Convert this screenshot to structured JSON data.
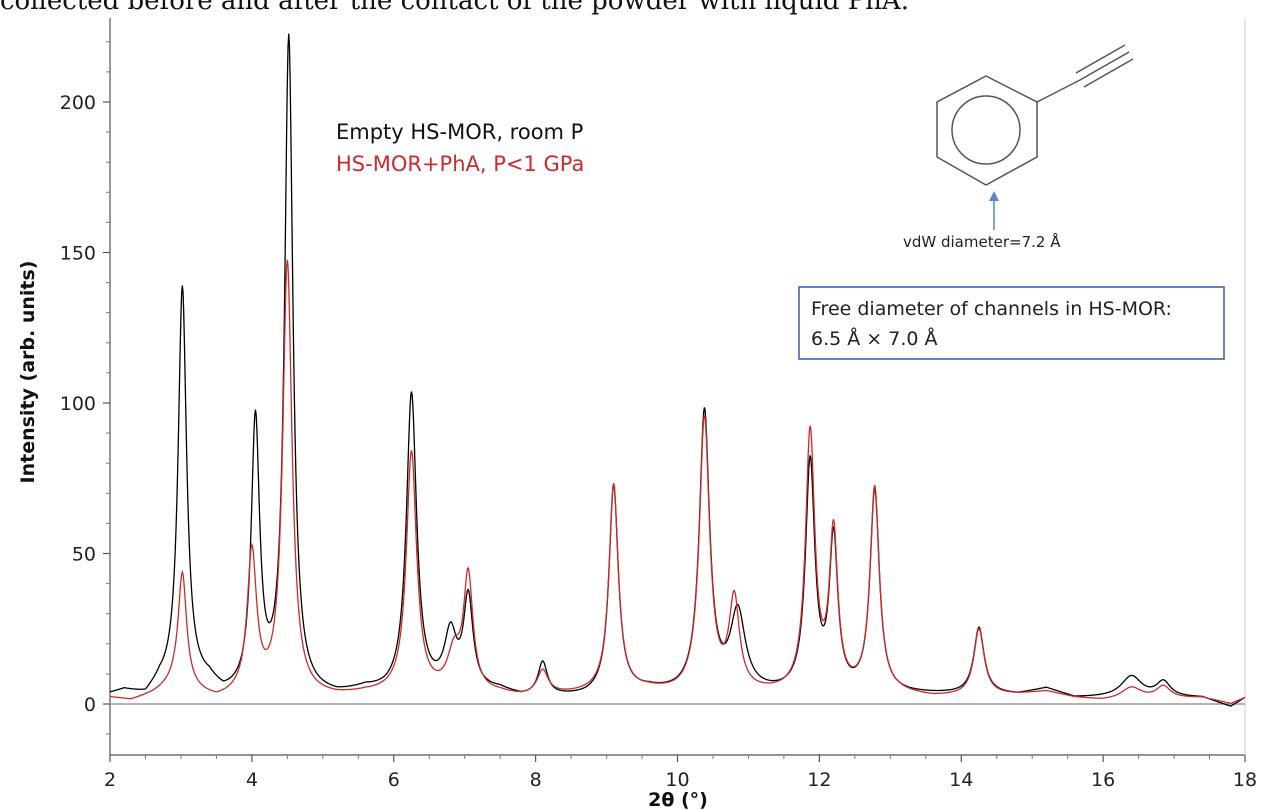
{
  "page_caption": "collected before and after the contact of the powder with liquid PhA.",
  "chart_data": {
    "type": "line",
    "title": "",
    "xlabel": "2θ (°)",
    "ylabel": "Intensity (arb. units)",
    "xlim": [
      2,
      18
    ],
    "ylim": [
      -10,
      222
    ],
    "xticks": [
      2,
      4,
      6,
      8,
      10,
      12,
      14,
      16,
      18
    ],
    "xtick_labels": [
      "2",
      "4",
      "6",
      "8",
      "10",
      "12",
      "14",
      "16",
      "18"
    ],
    "yticks": [
      0,
      50,
      100,
      150,
      200
    ],
    "ytick_labels": [
      "0",
      "50",
      "100",
      "150",
      "200"
    ],
    "grid": false,
    "legend_position": "top-center",
    "baseline_y": 0,
    "series": [
      {
        "name": "Empty HS-MOR, room P",
        "color": "#000000",
        "peaks": [
          {
            "x": 3.02,
            "h": 132,
            "w": 0.09
          },
          {
            "x": 4.05,
            "h": 90,
            "w": 0.09
          },
          {
            "x": 4.52,
            "h": 218,
            "w": 0.09
          },
          {
            "x": 6.25,
            "h": 99,
            "w": 0.11
          },
          {
            "x": 6.8,
            "h": 18,
            "w": 0.13
          },
          {
            "x": 7.05,
            "h": 30,
            "w": 0.1
          },
          {
            "x": 8.1,
            "h": 11,
            "w": 0.1
          },
          {
            "x": 9.1,
            "h": 69,
            "w": 0.1
          },
          {
            "x": 10.38,
            "h": 93,
            "w": 0.11
          },
          {
            "x": 10.85,
            "h": 26,
            "w": 0.16
          },
          {
            "x": 11.87,
            "h": 76,
            "w": 0.1
          },
          {
            "x": 12.2,
            "h": 50,
            "w": 0.09
          },
          {
            "x": 12.78,
            "h": 67,
            "w": 0.1
          },
          {
            "x": 14.25,
            "h": 22,
            "w": 0.11
          },
          {
            "x": 16.4,
            "h": 7,
            "w": 0.22
          },
          {
            "x": 16.85,
            "h": 5,
            "w": 0.15
          }
        ],
        "points": [
          [
            2.0,
            3
          ],
          [
            2.2,
            4
          ],
          [
            2.5,
            2
          ],
          [
            2.7,
            6
          ],
          [
            3.4,
            6
          ],
          [
            3.6,
            2
          ],
          [
            5.2,
            2
          ],
          [
            5.6,
            4
          ],
          [
            5.9,
            3
          ],
          [
            7.5,
            4
          ],
          [
            7.8,
            2
          ],
          [
            8.7,
            2
          ],
          [
            9.6,
            4
          ],
          [
            10.0,
            3
          ],
          [
            11.4,
            3
          ],
          [
            13.1,
            3
          ],
          [
            13.6,
            3
          ],
          [
            14.8,
            3
          ],
          [
            15.2,
            5
          ],
          [
            15.6,
            2
          ],
          [
            16.0,
            2
          ],
          [
            17.4,
            2
          ],
          [
            17.8,
            -1
          ],
          [
            18.0,
            2
          ]
        ]
      },
      {
        "name": "HS-MOR+PhA, P<1 GPa",
        "color": "#cc2b2b",
        "peaks": [
          {
            "x": 3.02,
            "h": 38,
            "w": 0.09
          },
          {
            "x": 4.0,
            "h": 47,
            "w": 0.1
          },
          {
            "x": 4.5,
            "h": 144,
            "w": 0.1
          },
          {
            "x": 6.25,
            "h": 80,
            "w": 0.11
          },
          {
            "x": 6.85,
            "h": 12,
            "w": 0.14
          },
          {
            "x": 7.05,
            "h": 38,
            "w": 0.1
          },
          {
            "x": 8.1,
            "h": 8,
            "w": 0.12
          },
          {
            "x": 9.1,
            "h": 69,
            "w": 0.1
          },
          {
            "x": 10.38,
            "h": 91,
            "w": 0.11
          },
          {
            "x": 10.8,
            "h": 30,
            "w": 0.11
          },
          {
            "x": 11.87,
            "h": 86,
            "w": 0.1
          },
          {
            "x": 12.2,
            "h": 52,
            "w": 0.09
          },
          {
            "x": 12.78,
            "h": 68,
            "w": 0.1
          },
          {
            "x": 14.25,
            "h": 22,
            "w": 0.11
          },
          {
            "x": 16.4,
            "h": 4,
            "w": 0.22
          },
          {
            "x": 16.85,
            "h": 4,
            "w": 0.15
          }
        ],
        "points": [
          [
            2.0,
            2
          ],
          [
            2.3,
            1
          ],
          [
            2.6,
            3
          ],
          [
            2.9,
            6
          ],
          [
            3.5,
            1
          ],
          [
            3.8,
            2
          ],
          [
            5.2,
            2
          ],
          [
            5.6,
            3
          ],
          [
            5.9,
            3
          ],
          [
            7.5,
            3
          ],
          [
            7.8,
            2
          ],
          [
            8.7,
            3
          ],
          [
            9.6,
            4
          ],
          [
            10.0,
            3
          ],
          [
            11.4,
            3
          ],
          [
            13.1,
            3
          ],
          [
            13.6,
            2
          ],
          [
            14.8,
            3
          ],
          [
            15.2,
            4
          ],
          [
            15.6,
            2
          ],
          [
            16.0,
            1
          ],
          [
            17.4,
            2
          ],
          [
            17.8,
            0
          ],
          [
            18.0,
            2
          ]
        ]
      }
    ],
    "annotations": {
      "molecule_label": "vdW diameter=7.2 Å",
      "box_line1": "Free diameter of channels in HS-MOR:",
      "box_line2": "6.5 Å × 7.0 Å",
      "box_border_color": "#3a5ba8",
      "arrow_color": "#5b86c5"
    }
  }
}
